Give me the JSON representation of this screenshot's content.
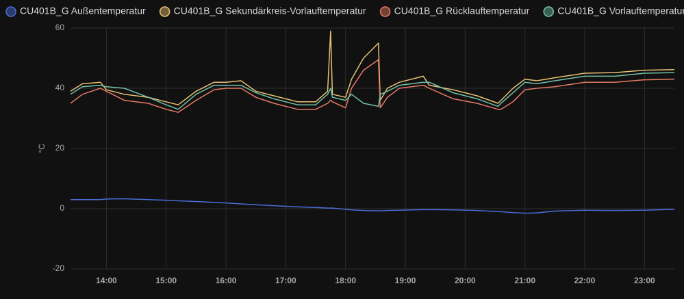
{
  "chart_data": {
    "type": "line",
    "y_label": "°C",
    "x": [
      13.4,
      13.6,
      13.9,
      14.0,
      14.3,
      14.7,
      15.0,
      15.2,
      15.5,
      15.8,
      16.0,
      16.25,
      16.5,
      16.8,
      17.2,
      17.5,
      17.7,
      17.75,
      17.78,
      18.0,
      18.1,
      18.3,
      18.55,
      18.58,
      18.7,
      18.9,
      19.3,
      19.4,
      19.8,
      20.2,
      20.55,
      20.6,
      20.8,
      21.0,
      21.2,
      21.5,
      22.0,
      22.5,
      23.0,
      23.5
    ],
    "xlim": [
      13.4,
      23.5
    ],
    "xticks": [
      {
        "value": 14,
        "label": "14:00"
      },
      {
        "value": 15,
        "label": "15:00"
      },
      {
        "value": 16,
        "label": "16:00"
      },
      {
        "value": 17,
        "label": "17:00"
      },
      {
        "value": 18,
        "label": "18:00"
      },
      {
        "value": 19,
        "label": "19:00"
      },
      {
        "value": 20,
        "label": "20:00"
      },
      {
        "value": 21,
        "label": "21:00"
      },
      {
        "value": 22,
        "label": "22:00"
      },
      {
        "value": 23,
        "label": "23:00"
      }
    ],
    "ylim": [
      -20,
      60
    ],
    "yticks": [
      -20,
      0,
      20,
      40,
      60
    ],
    "grid": true,
    "series": [
      {
        "name": "CU401B_G Außentemperatur",
        "color": "#4a6ed8",
        "values": [
          3,
          3,
          3,
          3.2,
          3.3,
          3,
          2.8,
          2.6,
          2.4,
          2.1,
          1.9,
          1.6,
          1.3,
          1,
          0.6,
          0.4,
          0.2,
          0.2,
          0.2,
          -0.2,
          -0.4,
          -0.6,
          -0.7,
          -0.7,
          -0.6,
          -0.5,
          -0.3,
          -0.3,
          -0.4,
          -0.6,
          -1,
          -1,
          -1.3,
          -1.5,
          -1.4,
          -0.8,
          -0.5,
          -0.6,
          -0.5,
          -0.2
        ]
      },
      {
        "name": "CU401B_G Sekundärkreis-Vorlauftemperatur",
        "color": "#e8c272",
        "values": [
          39,
          41.5,
          42,
          39.5,
          38,
          37,
          35.5,
          34.5,
          39,
          42,
          42,
          42.5,
          39,
          37.5,
          35.5,
          35.5,
          39,
          59,
          38,
          37,
          43,
          50,
          55,
          36,
          40,
          42,
          44,
          41,
          39.5,
          37.5,
          35,
          36,
          40,
          43,
          42.5,
          43.5,
          45,
          45.2,
          46,
          46.2
        ]
      },
      {
        "name": "CU401B_G Rücklauftemperatur",
        "color": "#e87a65",
        "values": [
          35,
          38,
          40,
          39,
          36,
          35,
          33,
          32,
          36,
          39.5,
          40,
          40,
          37,
          35,
          33,
          33,
          35,
          36,
          35.5,
          33.5,
          40,
          46,
          49.5,
          33.5,
          37,
          40,
          41,
          40,
          36.5,
          35,
          33,
          33,
          35.5,
          39.5,
          40,
          40.5,
          42,
          42,
          42.8,
          43
        ]
      },
      {
        "name": "CU401B_G Vorlauftemperatur",
        "color": "#72c2a8",
        "values": [
          38,
          40.5,
          41,
          40.5,
          40,
          37,
          34.5,
          33,
          38,
          41,
          41,
          41,
          38.5,
          36.5,
          34.5,
          34.5,
          38,
          40,
          37,
          36,
          38,
          35,
          34,
          38,
          39,
          41,
          42,
          42,
          38.5,
          36.5,
          34,
          35,
          38.5,
          42,
          41.5,
          42.5,
          44,
          44,
          45,
          45.2
        ]
      }
    ]
  }
}
